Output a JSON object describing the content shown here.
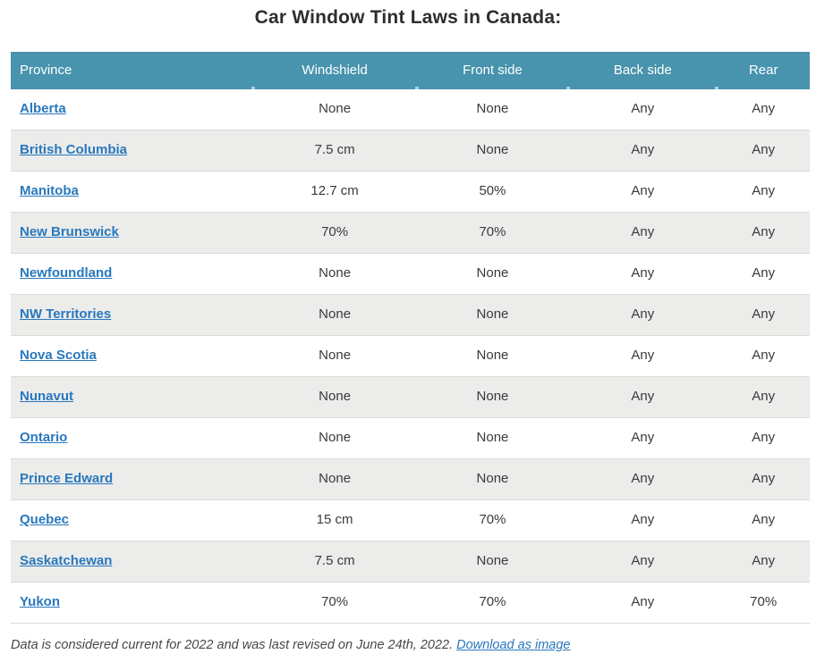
{
  "chart_data": {
    "type": "table",
    "title": "Car Window Tint Laws in Canada:",
    "columns": [
      "Province",
      "Windshield",
      "Front side",
      "Back side",
      "Rear"
    ],
    "rows": [
      [
        "Alberta",
        "None",
        "None",
        "Any",
        "Any"
      ],
      [
        "British Columbia",
        "7.5 cm",
        "None",
        "Any",
        "Any"
      ],
      [
        "Manitoba",
        "12.7 cm",
        "50%",
        "Any",
        "Any"
      ],
      [
        "New Brunswick",
        "70%",
        "70%",
        "Any",
        "Any"
      ],
      [
        "Newfoundland",
        "None",
        "None",
        "Any",
        "Any"
      ],
      [
        "NW Territories",
        "None",
        "None",
        "Any",
        "Any"
      ],
      [
        "Nova Scotia",
        "None",
        "None",
        "Any",
        "Any"
      ],
      [
        "Nunavut",
        "None",
        "None",
        "Any",
        "Any"
      ],
      [
        "Ontario",
        "None",
        "None",
        "Any",
        "Any"
      ],
      [
        "Prince Edward",
        "None",
        "None",
        "Any",
        "Any"
      ],
      [
        "Quebec",
        "15 cm",
        "70%",
        "Any",
        "Any"
      ],
      [
        "Saskatchewan",
        "7.5 cm",
        "None",
        "Any",
        "Any"
      ],
      [
        "Yukon",
        "70%",
        "70%",
        "Any",
        "70%"
      ]
    ],
    "layout": {
      "header_position": "top",
      "row_striping": "alternating",
      "province_column_style": "bold-underlined-links"
    }
  },
  "footer": {
    "note": "Data is considered current for 2022 and was last revised on June 24th, 2022.",
    "download_link_label": "Download as image"
  },
  "colors": {
    "header_bg": "#4893ad",
    "header_text": "#ffffff",
    "row_alt_bg": "#ececeb",
    "row_border": "#dadad8",
    "link": "#2878bd",
    "cell_text": "#3a3a3a",
    "title_text": "#2e2e2e",
    "footer_text": "#474747"
  }
}
